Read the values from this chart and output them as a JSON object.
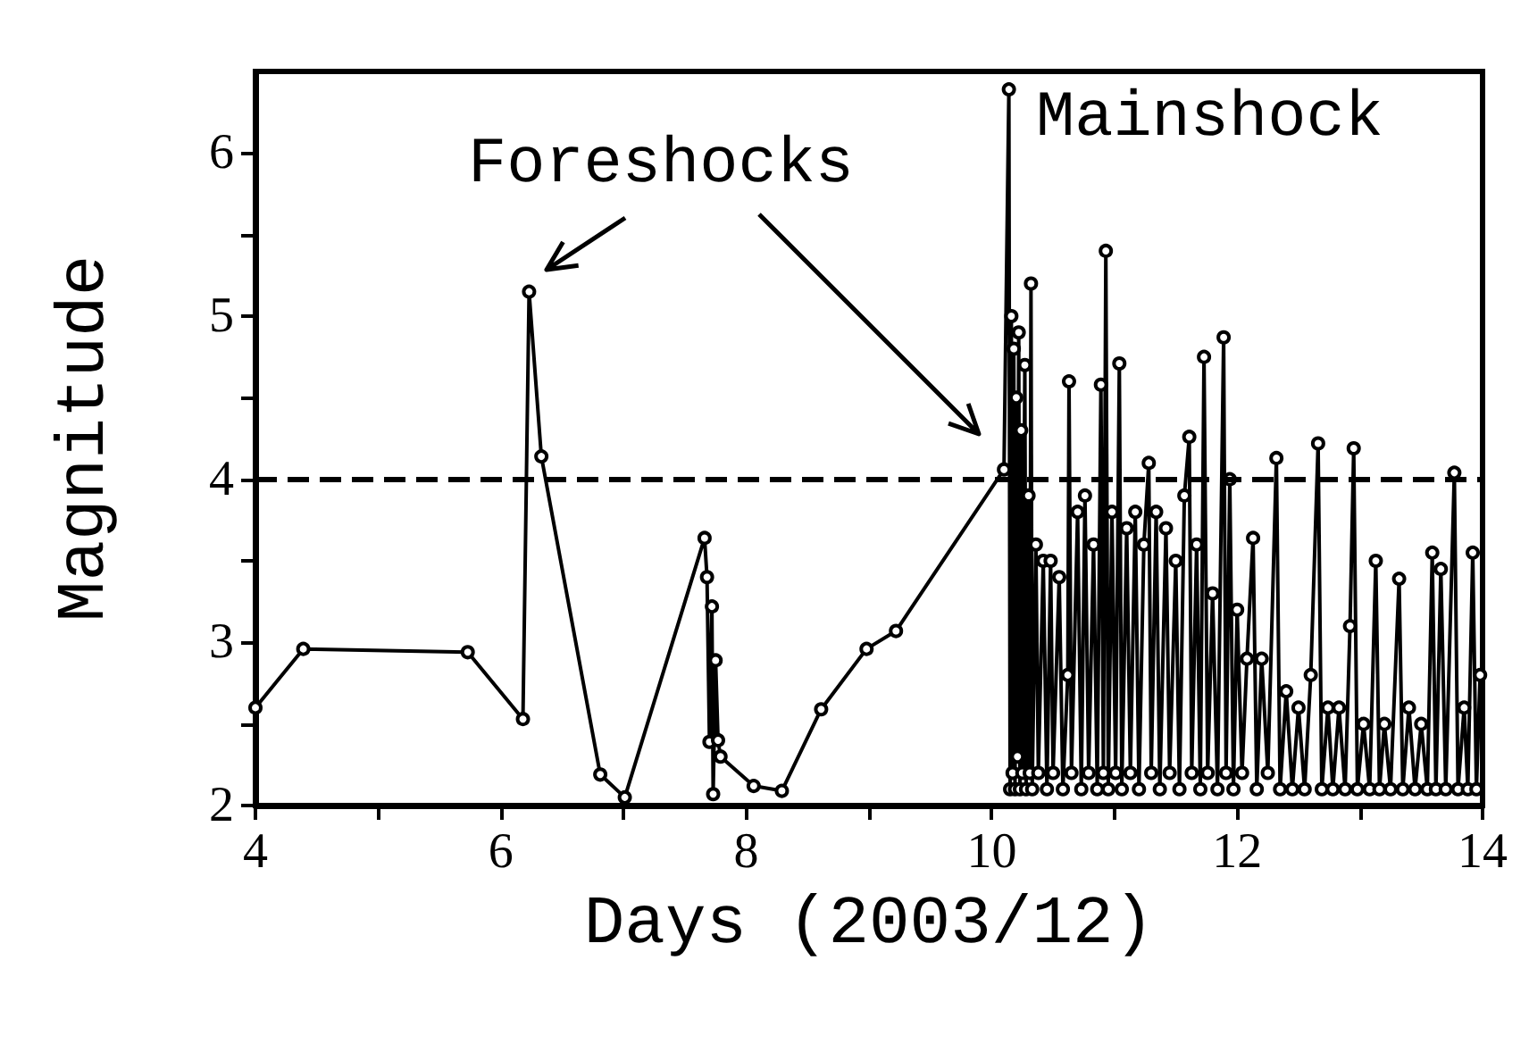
{
  "chart_data": {
    "type": "line",
    "xlabel": "Days (2003/12)",
    "ylabel": "Magnitude",
    "xlim": [
      4,
      14
    ],
    "xticks": [
      4,
      {
        "value": 5,
        "label": null
      },
      6,
      {
        "value": 7,
        "label": null
      },
      8,
      {
        "value": 9,
        "label": null
      },
      10,
      {
        "value": 11,
        "label": null
      },
      12,
      {
        "value": 13,
        "label": null
      },
      14
    ],
    "ylim": [
      2,
      6.5
    ],
    "yticks": [
      2,
      {
        "value": 2.5,
        "label": null
      },
      3,
      {
        "value": 3.5,
        "label": null
      },
      4,
      {
        "value": 4.5,
        "label": null
      },
      5,
      {
        "value": 5.5,
        "label": null
      },
      6
    ],
    "grid": false,
    "legend": false,
    "marker": "circle",
    "line_style": "solid",
    "annotations": [
      "Foreshocks",
      "Mainshock"
    ],
    "ref_lines": [
      {
        "axis": "y",
        "value": 4,
        "label": null,
        "color": "#000000",
        "line_style": "dashed"
      }
    ],
    "series": [
      {
        "color": "#000000",
        "x": [
          4,
          4.39,
          5.73,
          6.18,
          6.23,
          6.33,
          6.81,
          7.01,
          7.66,
          7.68,
          7.7,
          7.72,
          7.73,
          7.75,
          7.77,
          7.79,
          8.06,
          8.29,
          8.61,
          8.98,
          9.22,
          10.1,
          10.14,
          10.15,
          10.16,
          10.17,
          10.18,
          10.19,
          10.2,
          10.21,
          10.22,
          10.23,
          10.24,
          10.25,
          10.27,
          10.28,
          10.3,
          10.31,
          10.32,
          10.33,
          10.36,
          10.38,
          10.42,
          10.45,
          10.48,
          10.5,
          10.55,
          10.58,
          10.62,
          10.63,
          10.65,
          10.7,
          10.73,
          10.76,
          10.79,
          10.83,
          10.86,
          10.89,
          10.91,
          10.93,
          10.95,
          10.98,
          11.01,
          11.04,
          11.06,
          11.1,
          11.13,
          11.17,
          11.2,
          11.24,
          11.28,
          11.3,
          11.34,
          11.37,
          11.42,
          11.45,
          11.5,
          11.53,
          11.57,
          11.61,
          11.63,
          11.67,
          11.7,
          11.73,
          11.76,
          11.8,
          11.84,
          11.89,
          11.91,
          11.94,
          11.97,
          12.0,
          12.04,
          12.08,
          12.13,
          12.16,
          12.2,
          12.25,
          12.32,
          12.35,
          12.4,
          12.45,
          12.5,
          12.55,
          12.6,
          12.66,
          12.69,
          12.74,
          12.78,
          12.83,
          12.88,
          12.92,
          12.95,
          12.98,
          13.03,
          13.08,
          13.13,
          13.16,
          13.2,
          13.25,
          13.32,
          13.35,
          13.4,
          13.45,
          13.5,
          13.55,
          13.59,
          13.62,
          13.66,
          13.7,
          13.77,
          13.8,
          13.85,
          13.88,
          13.92,
          13.95,
          13.98
        ],
        "values": [
          2.6,
          2.96,
          2.94,
          2.53,
          5.15,
          4.14,
          2.19,
          2.05,
          3.64,
          3.4,
          2.39,
          3.22,
          2.07,
          2.89,
          2.4,
          2.3,
          2.12,
          2.09,
          2.59,
          2.96,
          3.07,
          4.06,
          6.39,
          2.1,
          5.0,
          2.2,
          4.8,
          2.1,
          4.5,
          2.3,
          4.9,
          2.1,
          4.3,
          2.2,
          4.7,
          2.1,
          3.9,
          2.2,
          5.2,
          2.1,
          3.6,
          2.2,
          3.5,
          2.1,
          3.5,
          2.2,
          3.4,
          2.1,
          2.8,
          4.6,
          2.2,
          3.8,
          2.1,
          3.9,
          2.2,
          3.6,
          2.1,
          4.58,
          2.2,
          5.4,
          2.1,
          3.8,
          2.2,
          4.71,
          2.1,
          3.7,
          2.2,
          3.8,
          2.1,
          3.6,
          4.1,
          2.2,
          3.8,
          2.1,
          3.7,
          2.2,
          3.5,
          2.1,
          3.9,
          4.26,
          2.2,
          3.6,
          2.1,
          4.75,
          2.2,
          3.3,
          2.1,
          4.87,
          2.2,
          4.0,
          2.1,
          3.2,
          2.2,
          2.9,
          3.64,
          2.1,
          2.9,
          2.2,
          4.13,
          2.1,
          2.7,
          2.1,
          2.6,
          2.1,
          2.8,
          4.22,
          2.1,
          2.6,
          2.1,
          2.6,
          2.1,
          3.1,
          4.19,
          2.1,
          2.5,
          2.1,
          3.5,
          2.1,
          2.5,
          2.1,
          3.39,
          2.1,
          2.6,
          2.1,
          2.5,
          2.1,
          3.55,
          2.1,
          3.45,
          2.1,
          4.04,
          2.1,
          2.6,
          2.1,
          3.55,
          2.1,
          2.8
        ]
      }
    ]
  }
}
